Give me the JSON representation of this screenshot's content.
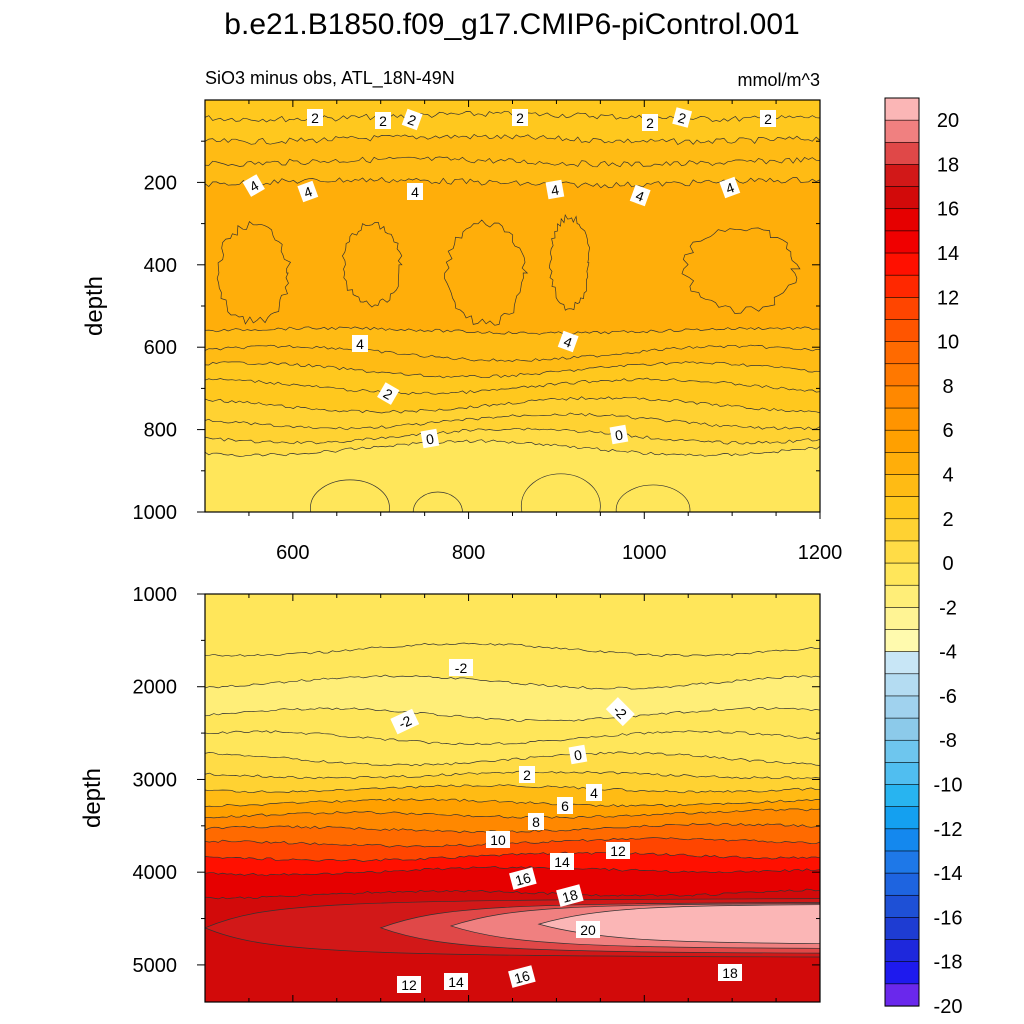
{
  "chart_data": {
    "type": "contour",
    "title": "b.e21.B1850.f09_g17.CMIP6-piControl.001",
    "subtitle_left": "SiO3 minus obs, ATL_18N-49N",
    "units": "mmol/m^3",
    "colorbar": {
      "levels": [
        -20,
        -19,
        -18,
        -17,
        -16,
        -15,
        -14,
        -13,
        -12,
        -11,
        -10,
        -9,
        -8,
        -7,
        -6,
        -5,
        -4,
        -3,
        -2,
        -1,
        0,
        1,
        2,
        3,
        4,
        5,
        6,
        7,
        8,
        9,
        10,
        11,
        12,
        13,
        14,
        15,
        16,
        17,
        18,
        19,
        20
      ],
      "tick_labels": [
        "20",
        "18",
        "16",
        "14",
        "12",
        "10",
        "8",
        "6",
        "4",
        "2",
        "0",
        "-2",
        "-4",
        "-6",
        "-8",
        "-10",
        "-12",
        "-14",
        "-16",
        "-18",
        "-20"
      ],
      "colors_top_to_bottom": [
        "#fbb6b6",
        "#f08080",
        "#e04848",
        "#d21818",
        "#d20a0a",
        "#e60000",
        "#f00000",
        "#ff1000",
        "#ff2800",
        "#ff4500",
        "#ff5500",
        "#ff6a00",
        "#ff7800",
        "#ff8800",
        "#ff9400",
        "#ffa000",
        "#ffae0a",
        "#ffbb14",
        "#ffc81e",
        "#ffd232",
        "#ffdc46",
        "#ffe65a",
        "#ffee78",
        "#fff494",
        "#fffaae",
        "#c8e6f6",
        "#b4dcf2",
        "#a0d2ee",
        "#8ccaea",
        "#6ec6ee",
        "#50bef0",
        "#28b4f0",
        "#14a0f0",
        "#1488ee",
        "#1e78e8",
        "#1e64e0",
        "#1e50d6",
        "#1e3cd2",
        "#1e28dc",
        "#1e1aee",
        "#6a28ec"
      ]
    },
    "panels": [
      {
        "name": "upper",
        "ylabel": "depth",
        "xlim": [
          500,
          1200
        ],
        "ylim": [
          0,
          1000
        ],
        "y_reversed": true,
        "xticks": [
          600,
          800,
          1000,
          1200
        ],
        "yticks": [
          200,
          400,
          600,
          800,
          1000
        ],
        "bands": [
          {
            "value": 2,
            "top": 0,
            "bottom": 40
          },
          {
            "value": 2.5,
            "top": 40,
            "bottom": 95
          },
          {
            "value": 3,
            "top": 95,
            "bottom": 150
          },
          {
            "value": 3.5,
            "top": 150,
            "bottom": 200
          },
          {
            "value": 4,
            "top": 200,
            "bottom": 560
          },
          {
            "value": 3.5,
            "top": 560,
            "bottom": 615
          },
          {
            "value": 3,
            "top": 615,
            "bottom": 655
          },
          {
            "value": 2.5,
            "top": 655,
            "bottom": 695
          },
          {
            "value": 2,
            "top": 695,
            "bottom": 740
          },
          {
            "value": 1.5,
            "top": 740,
            "bottom": 780
          },
          {
            "value": 1,
            "top": 780,
            "bottom": 815
          },
          {
            "value": 0.5,
            "top": 815,
            "bottom": 845
          },
          {
            "value": -0.5,
            "top": 845,
            "bottom": 1000
          }
        ],
        "contour_labels": [
          "2",
          "2",
          "2",
          "2",
          "2",
          "2",
          "2",
          "4",
          "4",
          "4",
          "4",
          "4",
          "4",
          "4",
          "4",
          "2",
          "0",
          "0"
        ]
      },
      {
        "name": "lower",
        "ylabel": "depth",
        "ylim": [
          1000,
          5400
        ],
        "y_reversed": true,
        "yticks": [
          1000,
          2000,
          3000,
          4000,
          5000
        ],
        "bands": [
          {
            "value": -0.5,
            "top": 1000,
            "bottom": 1600
          },
          {
            "value": -1,
            "top": 1600,
            "bottom": 1950
          },
          {
            "value": -1.5,
            "top": 1950,
            "bottom": 2300
          },
          {
            "value": -1,
            "top": 2300,
            "bottom": 2550
          },
          {
            "value": -0.5,
            "top": 2550,
            "bottom": 2780
          },
          {
            "value": 0.5,
            "top": 2780,
            "bottom": 2950
          },
          {
            "value": 1.5,
            "top": 2950,
            "bottom": 3100
          },
          {
            "value": 3,
            "top": 3100,
            "bottom": 3250
          },
          {
            "value": 5,
            "top": 3250,
            "bottom": 3400
          },
          {
            "value": 7,
            "top": 3400,
            "bottom": 3550
          },
          {
            "value": 9,
            "top": 3550,
            "bottom": 3700
          },
          {
            "value": 11,
            "top": 3700,
            "bottom": 3850
          },
          {
            "value": 13,
            "top": 3850,
            "bottom": 4000
          },
          {
            "value": 15,
            "top": 4000,
            "bottom": 4250
          },
          {
            "value": 16,
            "top": 4250,
            "bottom": 5400
          }
        ],
        "core": [
          {
            "value": 17,
            "depth": 4600,
            "x_start": 500,
            "half_thickness": 300
          },
          {
            "value": 18,
            "depth": 4600,
            "x_start": 700,
            "half_thickness": 260
          },
          {
            "value": 19,
            "depth": 4580,
            "x_start": 780,
            "half_thickness": 230
          },
          {
            "value": 20,
            "depth": 4560,
            "x_start": 880,
            "half_thickness": 200
          }
        ],
        "contour_labels": [
          "-2",
          "-2",
          "-2",
          "0",
          "2",
          "4",
          "6",
          "8",
          "10",
          "12",
          "14",
          "16",
          "18",
          "20",
          "12",
          "14",
          "16",
          "18"
        ]
      }
    ]
  }
}
